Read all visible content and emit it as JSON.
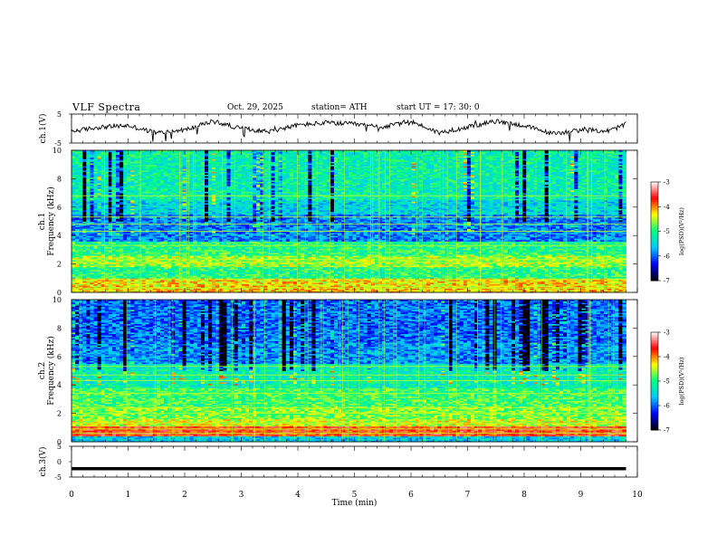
{
  "header": {
    "title": "VLF  Spectra",
    "date": "Oct. 29, 2025",
    "station": "station= ATH",
    "start": "start  UT  =   17: 30: 0"
  },
  "chart_data": [
    {
      "type": "line",
      "id": "ch1_waveform",
      "ylabel": "ch.1(V)",
      "ylim": [
        -5,
        5
      ],
      "yticks": [
        "5",
        "-5"
      ],
      "xlim": [
        0,
        10
      ],
      "x": [
        0,
        0.5,
        1.0,
        1.5,
        2.0,
        2.5,
        3.0,
        3.5,
        4.0,
        4.5,
        5.0,
        5.5,
        6.0,
        6.5,
        7.0,
        7.5,
        8.0,
        8.5,
        9.0,
        9.5,
        9.8
      ],
      "values": [
        -1.0,
        0.5,
        1.0,
        -1.5,
        -0.5,
        2.5,
        0.0,
        -1.0,
        1.2,
        2.0,
        1.5,
        0.5,
        2.5,
        -1.5,
        0.5,
        2.5,
        1.0,
        -1.8,
        -0.5,
        -0.8,
        1.5
      ],
      "color": "#000000"
    },
    {
      "type": "heatmap",
      "id": "ch1_spectrogram",
      "ylabel": "ch.1\nFrequency  (kHz)",
      "ylim": [
        0,
        10
      ],
      "yticks": [
        "0",
        "2",
        "4",
        "6",
        "8",
        "10"
      ],
      "xlim": [
        0,
        10
      ],
      "colorbar": {
        "label": "log(PSD)(V²/Hz)",
        "range": [
          -7,
          -3
        ],
        "ticks": [
          "-3",
          "-4",
          "-5",
          "-6",
          "-7"
        ]
      },
      "bands_kHz": [
        0.3,
        0.9,
        2.1,
        2.3,
        3.3,
        4.3,
        4.8,
        5.3,
        6.8
      ],
      "color_scale": [
        "#000000",
        "#0000ff",
        "#00c8ff",
        "#00ff80",
        "#ffff00",
        "#ff0000",
        "#ffffff"
      ]
    },
    {
      "type": "heatmap",
      "id": "ch2_spectrogram",
      "ylabel": "ch.2\nFrequency  (kHz)",
      "ylim": [
        0,
        10
      ],
      "yticks": [
        "0",
        "2",
        "4",
        "6",
        "8",
        "10"
      ],
      "xlim": [
        0,
        10
      ],
      "colorbar": {
        "label": "log(PSD)(V²/Hz)",
        "range": [
          -7,
          -3
        ],
        "ticks": [
          "-3",
          "-4",
          "-5",
          "-6",
          "-7"
        ]
      },
      "bands_kHz": [
        0.6,
        0.9,
        1.3,
        2.0,
        2.4,
        3.4,
        4.3,
        4.7,
        5.3
      ],
      "color_scale": [
        "#000000",
        "#0000ff",
        "#00c8ff",
        "#00ff80",
        "#ffff00",
        "#ff0000",
        "#ffffff"
      ]
    },
    {
      "type": "line",
      "id": "ch3_waveform",
      "ylabel": "ch.3(V)",
      "ylim": [
        -5,
        5
      ],
      "yticks": [
        "5",
        "0",
        "-5"
      ],
      "xlim": [
        0,
        10
      ],
      "x": [
        0,
        9.8
      ],
      "values": [
        -2.3,
        -2.3
      ],
      "color": "#000000"
    }
  ],
  "xaxis": {
    "label": "Time  (min)",
    "ticks": [
      "0",
      "1",
      "2",
      "3",
      "4",
      "5",
      "6",
      "7",
      "8",
      "9",
      "10"
    ]
  }
}
